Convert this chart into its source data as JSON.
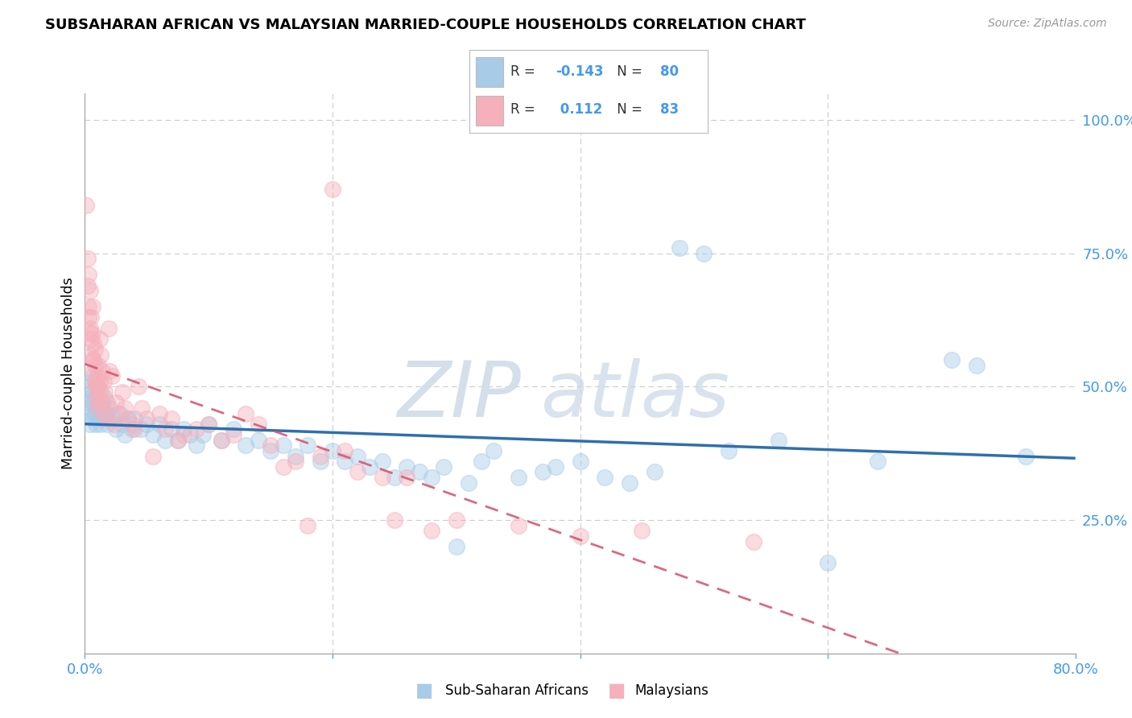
{
  "title": "SUBSAHARAN AFRICAN VS MALAYSIAN MARRIED-COUPLE HOUSEHOLDS CORRELATION CHART",
  "source": "Source: ZipAtlas.com",
  "ylabel": "Married-couple Households",
  "blue_color": "#a8cce8",
  "pink_color": "#f5b0bb",
  "blue_line_color": "#2f6fad",
  "pink_line_color": "#d4506a",
  "accent_color": "#4499ee",
  "label_blue": "Sub-Saharan Africans",
  "label_pink": "Malaysians",
  "watermark_zip": "ZIP",
  "watermark_atlas": "atlas",
  "xlim": [
    0.0,
    0.8
  ],
  "ylim": [
    0.0,
    1.05
  ],
  "blue_scatter": [
    [
      0.002,
      0.47
    ],
    [
      0.003,
      0.5
    ],
    [
      0.003,
      0.45
    ],
    [
      0.004,
      0.48
    ],
    [
      0.004,
      0.43
    ],
    [
      0.005,
      0.51
    ],
    [
      0.005,
      0.46
    ],
    [
      0.006,
      0.49
    ],
    [
      0.006,
      0.44
    ],
    [
      0.007,
      0.47
    ],
    [
      0.007,
      0.52
    ],
    [
      0.008,
      0.45
    ],
    [
      0.008,
      0.48
    ],
    [
      0.009,
      0.46
    ],
    [
      0.009,
      0.43
    ],
    [
      0.01,
      0.5
    ],
    [
      0.011,
      0.44
    ],
    [
      0.012,
      0.47
    ],
    [
      0.013,
      0.43
    ],
    [
      0.014,
      0.46
    ],
    [
      0.015,
      0.44
    ],
    [
      0.016,
      0.48
    ],
    [
      0.017,
      0.45
    ],
    [
      0.018,
      0.43
    ],
    [
      0.02,
      0.46
    ],
    [
      0.022,
      0.44
    ],
    [
      0.025,
      0.42
    ],
    [
      0.028,
      0.45
    ],
    [
      0.03,
      0.43
    ],
    [
      0.032,
      0.41
    ],
    [
      0.035,
      0.44
    ],
    [
      0.038,
      0.42
    ],
    [
      0.04,
      0.44
    ],
    [
      0.045,
      0.42
    ],
    [
      0.05,
      0.43
    ],
    [
      0.055,
      0.41
    ],
    [
      0.06,
      0.43
    ],
    [
      0.065,
      0.4
    ],
    [
      0.07,
      0.42
    ],
    [
      0.075,
      0.4
    ],
    [
      0.08,
      0.42
    ],
    [
      0.085,
      0.41
    ],
    [
      0.09,
      0.39
    ],
    [
      0.095,
      0.41
    ],
    [
      0.1,
      0.43
    ],
    [
      0.11,
      0.4
    ],
    [
      0.12,
      0.42
    ],
    [
      0.13,
      0.39
    ],
    [
      0.14,
      0.4
    ],
    [
      0.15,
      0.38
    ],
    [
      0.16,
      0.39
    ],
    [
      0.17,
      0.37
    ],
    [
      0.18,
      0.39
    ],
    [
      0.19,
      0.36
    ],
    [
      0.2,
      0.38
    ],
    [
      0.21,
      0.36
    ],
    [
      0.22,
      0.37
    ],
    [
      0.23,
      0.35
    ],
    [
      0.24,
      0.36
    ],
    [
      0.25,
      0.33
    ],
    [
      0.26,
      0.35
    ],
    [
      0.27,
      0.34
    ],
    [
      0.28,
      0.33
    ],
    [
      0.29,
      0.35
    ],
    [
      0.3,
      0.2
    ],
    [
      0.31,
      0.32
    ],
    [
      0.32,
      0.36
    ],
    [
      0.33,
      0.38
    ],
    [
      0.35,
      0.33
    ],
    [
      0.37,
      0.34
    ],
    [
      0.38,
      0.35
    ],
    [
      0.4,
      0.36
    ],
    [
      0.42,
      0.33
    ],
    [
      0.44,
      0.32
    ],
    [
      0.46,
      0.34
    ],
    [
      0.48,
      0.76
    ],
    [
      0.5,
      0.75
    ],
    [
      0.52,
      0.38
    ],
    [
      0.56,
      0.4
    ],
    [
      0.6,
      0.17
    ],
    [
      0.64,
      0.36
    ],
    [
      0.7,
      0.55
    ],
    [
      0.72,
      0.54
    ],
    [
      0.76,
      0.37
    ]
  ],
  "pink_scatter": [
    [
      0.001,
      0.84
    ],
    [
      0.002,
      0.74
    ],
    [
      0.002,
      0.69
    ],
    [
      0.003,
      0.71
    ],
    [
      0.003,
      0.65
    ],
    [
      0.003,
      0.63
    ],
    [
      0.004,
      0.61
    ],
    [
      0.004,
      0.68
    ],
    [
      0.004,
      0.6
    ],
    [
      0.005,
      0.63
    ],
    [
      0.005,
      0.59
    ],
    [
      0.005,
      0.56
    ],
    [
      0.006,
      0.65
    ],
    [
      0.006,
      0.6
    ],
    [
      0.006,
      0.55
    ],
    [
      0.007,
      0.58
    ],
    [
      0.007,
      0.55
    ],
    [
      0.007,
      0.53
    ],
    [
      0.008,
      0.57
    ],
    [
      0.008,
      0.54
    ],
    [
      0.008,
      0.51
    ],
    [
      0.009,
      0.51
    ],
    [
      0.009,
      0.48
    ],
    [
      0.009,
      0.5
    ],
    [
      0.01,
      0.52
    ],
    [
      0.01,
      0.49
    ],
    [
      0.01,
      0.46
    ],
    [
      0.011,
      0.47
    ],
    [
      0.011,
      0.54
    ],
    [
      0.011,
      0.5
    ],
    [
      0.012,
      0.59
    ],
    [
      0.012,
      0.51
    ],
    [
      0.013,
      0.56
    ],
    [
      0.013,
      0.49
    ],
    [
      0.014,
      0.53
    ],
    [
      0.014,
      0.47
    ],
    [
      0.015,
      0.51
    ],
    [
      0.015,
      0.45
    ],
    [
      0.016,
      0.49
    ],
    [
      0.017,
      0.44
    ],
    [
      0.018,
      0.47
    ],
    [
      0.019,
      0.61
    ],
    [
      0.02,
      0.53
    ],
    [
      0.022,
      0.52
    ],
    [
      0.024,
      0.43
    ],
    [
      0.025,
      0.47
    ],
    [
      0.027,
      0.45
    ],
    [
      0.03,
      0.49
    ],
    [
      0.032,
      0.46
    ],
    [
      0.035,
      0.44
    ],
    [
      0.038,
      0.43
    ],
    [
      0.04,
      0.42
    ],
    [
      0.043,
      0.5
    ],
    [
      0.046,
      0.46
    ],
    [
      0.05,
      0.44
    ],
    [
      0.055,
      0.37
    ],
    [
      0.06,
      0.45
    ],
    [
      0.065,
      0.42
    ],
    [
      0.07,
      0.44
    ],
    [
      0.075,
      0.4
    ],
    [
      0.08,
      0.41
    ],
    [
      0.09,
      0.42
    ],
    [
      0.1,
      0.43
    ],
    [
      0.11,
      0.4
    ],
    [
      0.12,
      0.41
    ],
    [
      0.13,
      0.45
    ],
    [
      0.14,
      0.43
    ],
    [
      0.15,
      0.39
    ],
    [
      0.16,
      0.35
    ],
    [
      0.17,
      0.36
    ],
    [
      0.18,
      0.24
    ],
    [
      0.19,
      0.37
    ],
    [
      0.2,
      0.87
    ],
    [
      0.21,
      0.38
    ],
    [
      0.22,
      0.34
    ],
    [
      0.24,
      0.33
    ],
    [
      0.25,
      0.25
    ],
    [
      0.26,
      0.33
    ],
    [
      0.28,
      0.23
    ],
    [
      0.3,
      0.25
    ],
    [
      0.35,
      0.24
    ],
    [
      0.4,
      0.22
    ],
    [
      0.45,
      0.23
    ],
    [
      0.54,
      0.21
    ]
  ]
}
